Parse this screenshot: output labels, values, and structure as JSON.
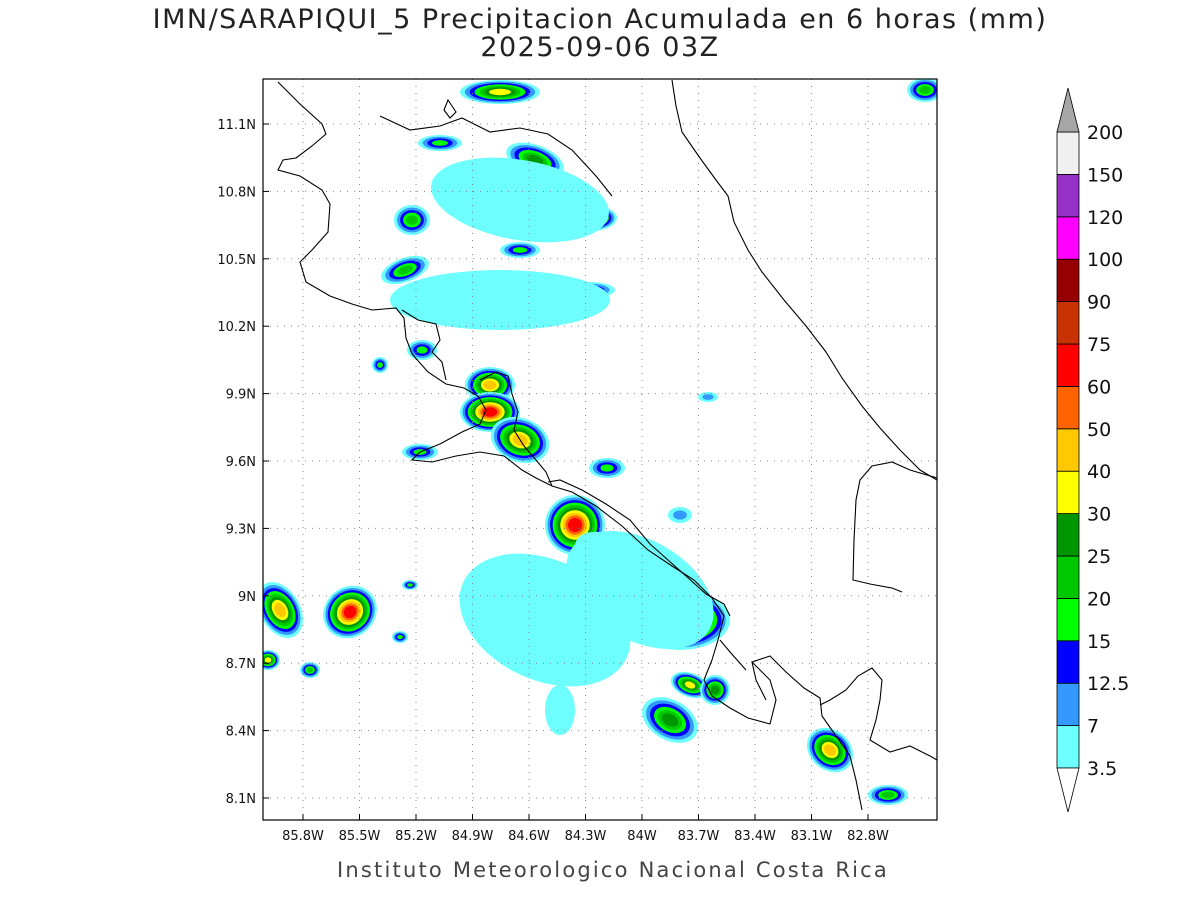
{
  "title": "IMN/SARAPIQUI_5 Precipitacion Acumulada en 6 horas (mm)",
  "subtitle": "2025-09-06 03Z",
  "map": {
    "lat_labels": [
      "11.1N",
      "10.8N",
      "10.5N",
      "10.2N",
      "9.9N",
      "9.6N",
      "9.3N",
      "9N",
      "8.7N",
      "8.4N",
      "8.1N"
    ],
    "lon_labels": [
      "85.8W",
      "85.5W",
      "85.2W",
      "84.9W",
      "84.6W",
      "84.3W",
      "84W",
      "83.7W",
      "83.4W",
      "83.1W",
      "82.8W"
    ]
  },
  "colorbar": {
    "levels": [
      3.5,
      7,
      12.5,
      15,
      20,
      25,
      30,
      40,
      50,
      60,
      75,
      90,
      100,
      120,
      150,
      200
    ],
    "colors": [
      "#6effff",
      "#3399ff",
      "#0000ff",
      "#00ff00",
      "#00c800",
      "#009600",
      "#ffff00",
      "#ffc800",
      "#ff6400",
      "#ff0000",
      "#c83200",
      "#960000",
      "#ff00ff",
      "#9632c8",
      "#f0f0f0"
    ],
    "over_color": "#a6a6a6",
    "under_color": "#ffffff"
  },
  "footer": "Instituto Meteorologico Nacional Costa Rica"
}
